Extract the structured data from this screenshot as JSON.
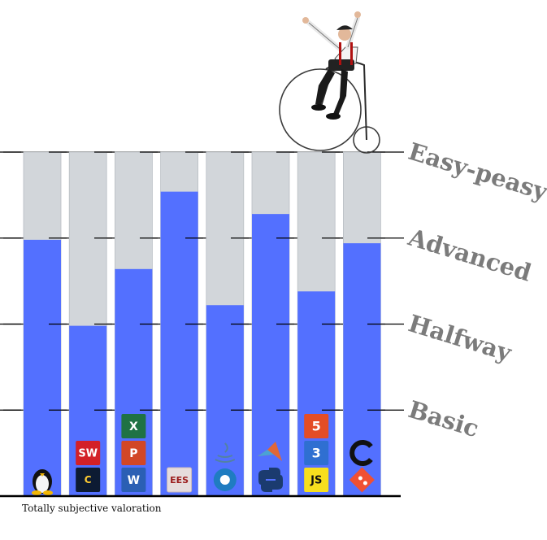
{
  "chart_data": {
    "type": "bar",
    "categories": [
      "Linux",
      "SolidWorks / CATIA",
      "Office",
      "EES",
      "Octave / Java",
      "MATLAB / Python",
      "Web (HTML/CSS/JS)",
      "C / Git"
    ],
    "values": [
      2.98,
      1.98,
      2.64,
      3.54,
      2.22,
      3.28,
      2.38,
      2.94
    ],
    "ylim": [
      0,
      4
    ],
    "levels": [
      "Basic",
      "Halfway",
      "Advanced",
      "Easy-peasy"
    ],
    "footnote": "Totally subjective valoration",
    "grid": true
  },
  "colors": {
    "filled": "#5370ff",
    "remaining": "#d2d6da",
    "grid": "#000000",
    "label": "#7b7b7b"
  },
  "icons": [
    [
      "linux-tux-icon"
    ],
    [
      "catia-icon",
      "solidworks-icon"
    ],
    [
      "word-icon",
      "powerpoint-icon",
      "excel-icon"
    ],
    [
      "ees-icon"
    ],
    [
      "octave-icon",
      "java-icon"
    ],
    [
      "python-icon",
      "matlab-icon"
    ],
    [
      "javascript-icon",
      "css3-icon",
      "html5-icon"
    ],
    [
      "git-icon",
      "c-language-icon"
    ]
  ],
  "decoration": "penny-farthing-rider"
}
